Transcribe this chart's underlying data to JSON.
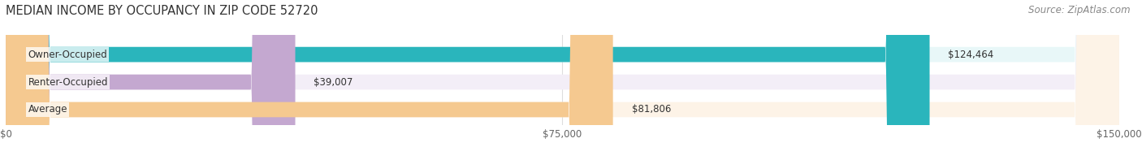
{
  "title": "MEDIAN INCOME BY OCCUPANCY IN ZIP CODE 52720",
  "source": "Source: ZipAtlas.com",
  "categories": [
    "Owner-Occupied",
    "Renter-Occupied",
    "Average"
  ],
  "values": [
    124464,
    39007,
    81806
  ],
  "labels": [
    "$124,464",
    "$39,007",
    "$81,806"
  ],
  "bar_colors": [
    "#2ab5bc",
    "#c4a8d0",
    "#f5c990"
  ],
  "bar_bg_colors": [
    "#e8f7f8",
    "#f3eef7",
    "#fdf3e7"
  ],
  "xlim": [
    0,
    150000
  ],
  "xticks": [
    0,
    75000,
    150000
  ],
  "xticklabels": [
    "$0",
    "$75,000",
    "$150,000"
  ],
  "title_fontsize": 10.5,
  "source_fontsize": 8.5,
  "label_fontsize": 8.5,
  "cat_fontsize": 8.5,
  "bar_height": 0.55,
  "background_color": "#ffffff"
}
